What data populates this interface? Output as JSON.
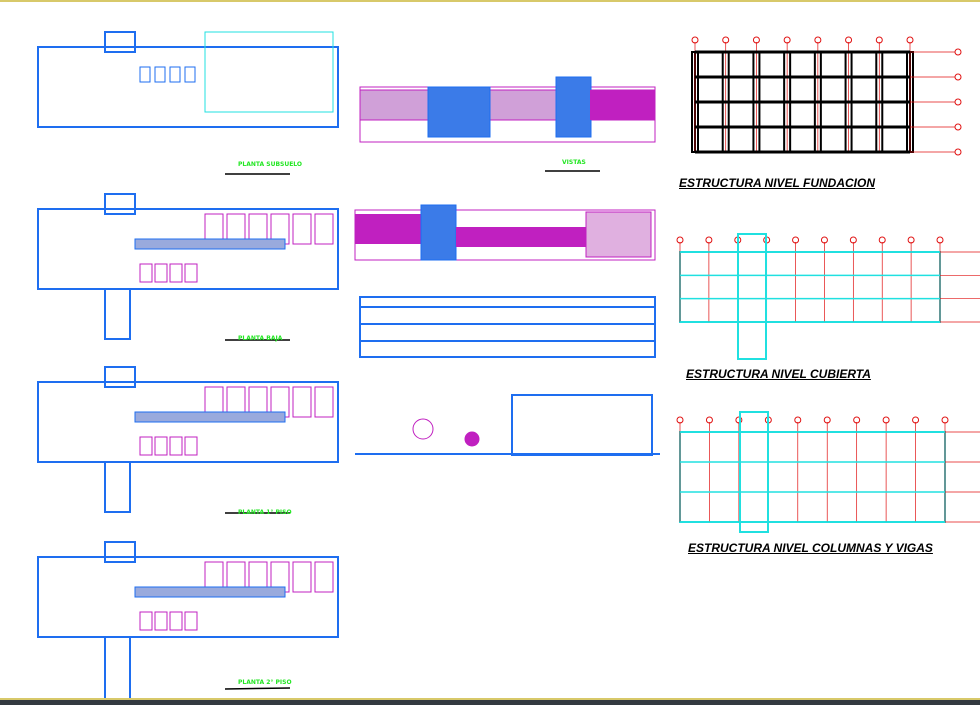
{
  "labels": {
    "plan_basement": "PLANTA SUBSUELO",
    "plan_ground": "PLANTA BAJA",
    "plan_first": "PLANTA 1° PISO",
    "plan_second": "PLANTA 2° PISO",
    "views": "VISTAS"
  },
  "structure_titles": {
    "foundation": "ESTRUCTURA NIVEL FUNDACION",
    "roof": "ESTRUCTURA NIVEL CUBIERTA",
    "columns": "ESTRUCTURA NIVEL COLUMNAS Y VIGAS"
  },
  "colors": {
    "wall": "#1e6ef0",
    "furniture": "#c020c0",
    "cyan": "#20e0e0",
    "grid": "#e01010",
    "label": "#22e622"
  }
}
